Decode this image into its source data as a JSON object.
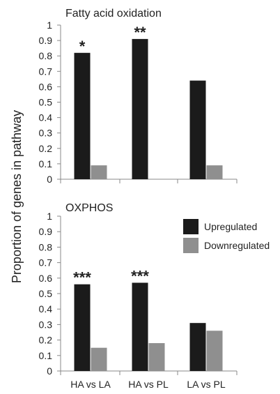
{
  "ylabel": "Proportion of genes in pathway",
  "categories": [
    "HA vs LA",
    "HA vs PL",
    "LA vs PL"
  ],
  "legend": {
    "items": [
      {
        "label": "Upregulated",
        "color": "#1b1b1b"
      },
      {
        "label": "Downregulated",
        "color": "#8f8f8f"
      }
    ],
    "placement": "top-right of bottom panel"
  },
  "chart_data": [
    {
      "type": "bar",
      "title": "Fatty acid oxidation",
      "categories": [
        "HA vs LA",
        "HA vs PL",
        "LA vs PL"
      ],
      "series": [
        {
          "name": "Upregulated",
          "values": [
            0.82,
            0.91,
            0.64
          ]
        },
        {
          "name": "Downregulated",
          "values": [
            0.09,
            0,
            0.09
          ]
        }
      ],
      "significance": [
        "*",
        "**",
        ""
      ],
      "ylim": [
        0,
        1
      ],
      "yticks": [
        "0",
        "0.1",
        "0.2",
        "0.3",
        "0.4",
        "0.5",
        "0.6",
        "0.7",
        "0.8",
        "0.9",
        "1"
      ],
      "grid": false
    },
    {
      "type": "bar",
      "title": "OXPHOS",
      "categories": [
        "HA vs LA",
        "HA vs PL",
        "LA vs PL"
      ],
      "series": [
        {
          "name": "Upregulated",
          "values": [
            0.56,
            0.57,
            0.31
          ]
        },
        {
          "name": "Downregulated",
          "values": [
            0.15,
            0.18,
            0.26
          ]
        }
      ],
      "significance": [
        "***",
        "***",
        ""
      ],
      "ylim": [
        0,
        1
      ],
      "yticks": [
        "0",
        "0.1",
        "0.2",
        "0.3",
        "0.4",
        "0.5",
        "0.6",
        "0.7",
        "0.8",
        "0.9",
        "1"
      ],
      "grid": false
    }
  ]
}
